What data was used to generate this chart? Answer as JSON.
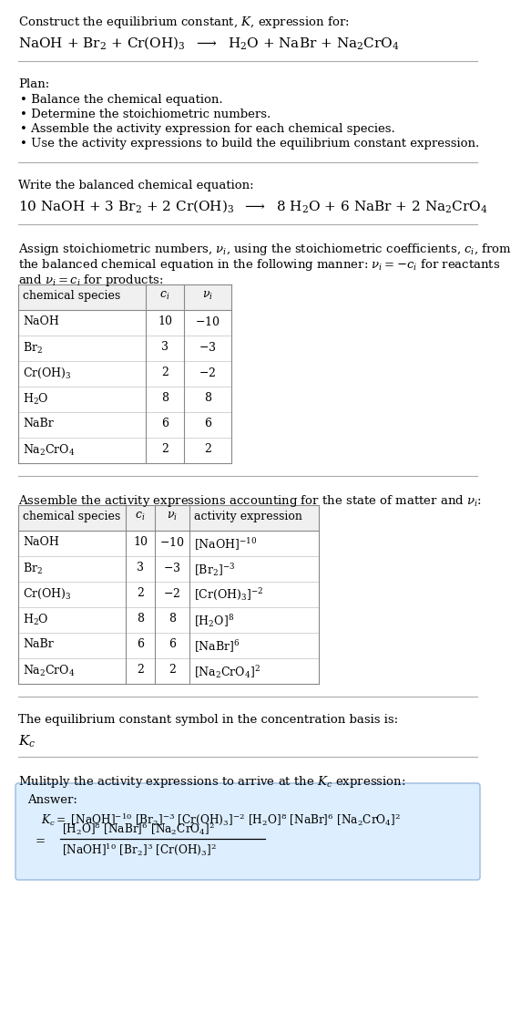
{
  "bg_color": "#ffffff",
  "text_color": "#000000",
  "title_line1": "Construct the equilibrium constant, $K$, expression for:",
  "reaction_unbalanced": "NaOH + Br$_2$ + Cr(OH)$_3$  $\\longrightarrow$  H$_2$O + NaBr + Na$_2$CrO$_4$",
  "plan_header": "Plan:",
  "plan_items": [
    "• Balance the chemical equation.",
    "• Determine the stoichiometric numbers.",
    "• Assemble the activity expression for each chemical species.",
    "• Use the activity expressions to build the equilibrium constant expression."
  ],
  "balanced_header": "Write the balanced chemical equation:",
  "reaction_balanced": "10 NaOH + 3 Br$_2$ + 2 Cr(OH)$_3$  $\\longrightarrow$  8 H$_2$O + 6 NaBr + 2 Na$_2$CrO$_4$",
  "stoich_line1": "Assign stoichiometric numbers, $\\nu_i$, using the stoichiometric coefficients, $c_i$, from",
  "stoich_line2": "the balanced chemical equation in the following manner: $\\nu_i = -c_i$ for reactants",
  "stoich_line3": "and $\\nu_i = c_i$ for products:",
  "table1_headers": [
    "chemical species",
    "$c_i$",
    "$\\nu_i$"
  ],
  "table1_rows": [
    [
      "NaOH",
      "10",
      "$-10$"
    ],
    [
      "Br$_2$",
      "3",
      "$-3$"
    ],
    [
      "Cr(OH)$_3$",
      "2",
      "$-2$"
    ],
    [
      "H$_2$O",
      "8",
      "8"
    ],
    [
      "NaBr",
      "6",
      "6"
    ],
    [
      "Na$_2$CrO$_4$",
      "2",
      "2"
    ]
  ],
  "activity_header": "Assemble the activity expressions accounting for the state of matter and $\\nu_i$:",
  "table2_headers": [
    "chemical species",
    "$c_i$",
    "$\\nu_i$",
    "activity expression"
  ],
  "table2_rows": [
    [
      "NaOH",
      "10",
      "$-10$",
      "[NaOH]$^{-10}$"
    ],
    [
      "Br$_2$",
      "3",
      "$-3$",
      "[Br$_2$]$^{-3}$"
    ],
    [
      "Cr(OH)$_3$",
      "2",
      "$-2$",
      "[Cr(OH)$_3$]$^{-2}$"
    ],
    [
      "H$_2$O",
      "8",
      "8",
      "[H$_2$O]$^8$"
    ],
    [
      "NaBr",
      "6",
      "6",
      "[NaBr]$^6$"
    ],
    [
      "Na$_2$CrO$_4$",
      "2",
      "2",
      "[Na$_2$CrO$_4$]$^2$"
    ]
  ],
  "kc_header": "The equilibrium constant symbol in the concentration basis is:",
  "kc_symbol": "$K_c$",
  "multiply_header": "Mulitply the activity expressions to arrive at the $K_c$ expression:",
  "answer_label": "Answer:",
  "answer_kc_line": "$K_c = $ [NaOH]$^{-10}$ [Br$_2$]$^{-3}$ [Cr(OH)$_3$]$^{-2}$ [H$_2$O]$^8$ [NaBr]$^6$ [Na$_2$CrO$_4$]$^2$",
  "answer_numerator": "[H$_2$O]$^8$ [NaBr]$^6$ [Na$_2$CrO$_4$]$^2$",
  "answer_denominator": "[NaOH]$^{10}$ [Br$_2$]$^3$ [Cr(OH)$_3$]$^2$",
  "answer_box_color": "#ddeeff",
  "answer_box_edge": "#99bbdd",
  "font_size_body": 9.5,
  "font_size_chem": 11.0,
  "font_size_table": 9.0,
  "table_header_bg": "#f0f0f0",
  "table_border_color": "#888888",
  "table_row_color": "#cccccc",
  "separator_color": "#aaaaaa"
}
